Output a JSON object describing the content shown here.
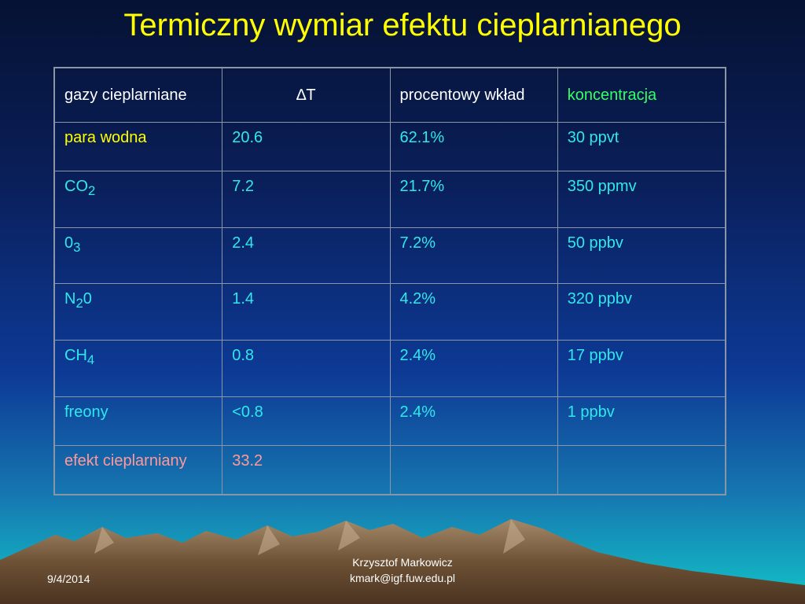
{
  "title": "Termiczny wymiar efektu cieplarnianego",
  "table": {
    "headers": [
      {
        "text": "gazy cieplarniane"
      },
      {
        "text": "∆T"
      },
      {
        "text": "procentowy wkład"
      },
      {
        "text": "koncentracja"
      }
    ],
    "rows": [
      {
        "gas": "para wodna",
        "sub": "",
        "suffix": "",
        "dt": "20.6",
        "percent": "62.1%",
        "conc": "30 ppvt"
      },
      {
        "gas": "CO",
        "sub": "2",
        "suffix": "",
        "dt": "7.2",
        "percent": "21.7%",
        "conc": "350 ppmv"
      },
      {
        "gas": "0",
        "sub": "3",
        "suffix": "",
        "dt": "2.4",
        "percent": "7.2%",
        "conc": "50 ppbv"
      },
      {
        "gas": "N",
        "sub": "2",
        "suffix": "0",
        "dt": "1.4",
        "percent": "4.2%",
        "conc": "320 ppbv"
      },
      {
        "gas": "CH",
        "sub": "4",
        "suffix": "",
        "dt": "0.8",
        "percent": "2.4%",
        "conc": "17 ppbv"
      },
      {
        "gas": "freony",
        "sub": "",
        "suffix": "",
        "dt": "<0.8",
        "percent": "2.4%",
        "conc": "1 ppbv"
      },
      {
        "gas": "efekt cieplarniany",
        "sub": "",
        "suffix": "",
        "dt": "33.2",
        "percent": "",
        "conc": ""
      }
    ]
  },
  "footer": {
    "date": "9/4/2014",
    "author": "Krzysztof Markowicz",
    "email": "kmark@igf.fuw.edu.pl"
  },
  "colors": {
    "title": "#ffff00",
    "cell_text": "#30e8ea",
    "header_text": "#ffffff",
    "header_accent": "#33ff66",
    "water_vapor": "#ffff00",
    "total_effect": "#ff9999"
  }
}
